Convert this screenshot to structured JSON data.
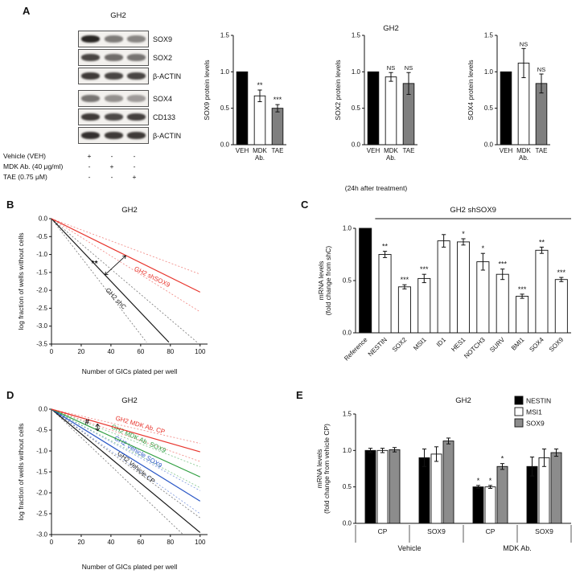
{
  "panels": {
    "a": {
      "letter": "A",
      "blot_title": "GH2",
      "blots": [
        {
          "label": "SOX9",
          "lanes": [
            0.95,
            0.55,
            0.5
          ]
        },
        {
          "label": "SOX2",
          "lanes": [
            0.8,
            0.62,
            0.58
          ]
        },
        {
          "label": "β-ACTIN",
          "lanes": [
            0.85,
            0.8,
            0.8
          ]
        },
        {
          "label": "SOX4",
          "lanes": [
            0.58,
            0.45,
            0.4
          ]
        },
        {
          "label": "CD133",
          "lanes": [
            0.85,
            0.78,
            0.82
          ]
        },
        {
          "label": "β-ACTIN",
          "lanes": [
            0.9,
            0.85,
            0.85
          ]
        }
      ],
      "treatments": [
        {
          "label": "Vehicle (VEH)",
          "symbols": [
            "+",
            "-",
            "-"
          ]
        },
        {
          "label": "MDK Ab. (40 μg/ml)",
          "symbols": [
            "-",
            "+",
            "-"
          ]
        },
        {
          "label": "TAE (0.75 μM)",
          "symbols": [
            "-",
            "-",
            "+"
          ]
        }
      ],
      "footnote": "(24h after treatment)"
    },
    "b": {
      "letter": "B"
    },
    "c": {
      "letter": "C"
    },
    "d": {
      "letter": "D"
    },
    "e": {
      "letter": "E"
    }
  },
  "chart_data": [
    {
      "id": "a1",
      "type": "bar",
      "title": "",
      "ylabel": [
        "SOX9 protein levels"
      ],
      "ylim": [
        0,
        1.5
      ],
      "yticks": [
        0,
        0.5,
        1,
        1.5
      ],
      "categories": [
        [
          "VEH"
        ],
        [
          "MDK",
          "Ab."
        ],
        [
          "TAE"
        ]
      ],
      "values": [
        1.0,
        0.67,
        0.5
      ],
      "errors": [
        0,
        0.08,
        0.05
      ],
      "fills": [
        "#000000",
        "#ffffff",
        "#7f7f7f"
      ],
      "sig": [
        "",
        "**",
        "***"
      ]
    },
    {
      "id": "a2",
      "type": "bar",
      "title": "GH2",
      "ylabel": [
        "SOX2 protein levels"
      ],
      "ylim": [
        0,
        1.5
      ],
      "yticks": [
        0,
        0.5,
        1,
        1.5
      ],
      "categories": [
        [
          "VEH"
        ],
        [
          "MDK",
          "Ab."
        ],
        [
          "TAE"
        ]
      ],
      "values": [
        1.0,
        0.93,
        0.84
      ],
      "errors": [
        0,
        0.06,
        0.15
      ],
      "fills": [
        "#000000",
        "#ffffff",
        "#7f7f7f"
      ],
      "sig": [
        "",
        "NS",
        "NS"
      ]
    },
    {
      "id": "a3",
      "type": "bar",
      "title": "",
      "ylabel": [
        "SOX4 protein levels"
      ],
      "ylim": [
        0,
        1.5
      ],
      "yticks": [
        0,
        0.5,
        1,
        1.5
      ],
      "categories": [
        [
          "VEH"
        ],
        [
          "MDK",
          "Ab."
        ],
        [
          "TAE"
        ]
      ],
      "values": [
        1.0,
        1.12,
        0.84
      ],
      "errors": [
        0,
        0.2,
        0.13
      ],
      "fills": [
        "#000000",
        "#ffffff",
        "#7f7f7f"
      ],
      "sig": [
        "",
        "NS",
        "NS"
      ]
    },
    {
      "id": "b",
      "type": "line",
      "title": "GH2",
      "xlabel": "Number of GICs plated per well",
      "ylabel": [
        "log fraction of wells without cells"
      ],
      "xlim": [
        0,
        105
      ],
      "xticks": [
        0,
        20,
        40,
        60,
        80,
        100
      ],
      "ylim": [
        -3.5,
        0
      ],
      "yticks": [
        0,
        -0.5,
        -1,
        -1.5,
        -2,
        -2.5,
        -3,
        -3.5
      ],
      "lines": [
        {
          "name": "GH2 shC",
          "color": "#1a1a1a",
          "end": [
            79,
            -3.45
          ],
          "ci": [
            [
              64,
              -3.45
            ],
            [
              98,
              -3.45
            ]
          ],
          "label": {
            "t": 0.6,
            "offset": -13
          }
        },
        {
          "name": "GH2 shSOX9",
          "color": "#e8342c",
          "end": [
            100,
            -2.05
          ],
          "ci": [
            [
              100,
              -2.6
            ],
            [
              100,
              -1.55
            ]
          ],
          "label": {
            "t": 0.7,
            "offset": -12
          }
        }
      ],
      "annotation": {
        "text": "**",
        "x": 29,
        "y": -1.32,
        "arrow": [
          36,
          -1.57,
          50,
          -1.03
        ]
      }
    },
    {
      "id": "c",
      "type": "bar",
      "title": "GH2 shSOX9",
      "overline": [
        1,
        10
      ],
      "ylabel": [
        "mRNA levels",
        "(fold change from shC)"
      ],
      "ylim": [
        0,
        1.0
      ],
      "yticks": [
        0,
        0.5,
        1
      ],
      "rotate_ticks": true,
      "categories": [
        "Reference",
        "NESTIN",
        "SOX2",
        "MSI1",
        "ID1",
        "HES1",
        "NOTCH3",
        "SURV",
        "BMI1",
        "SOX4",
        "SOX9"
      ],
      "values": [
        1.0,
        0.75,
        0.44,
        0.52,
        0.88,
        0.87,
        0.68,
        0.56,
        0.35,
        0.79,
        0.51
      ],
      "errors": [
        0,
        0.03,
        0.02,
        0.04,
        0.06,
        0.03,
        0.08,
        0.05,
        0.02,
        0.03,
        0.02
      ],
      "fills": [
        "#000000",
        "#ffffff",
        "#ffffff",
        "#ffffff",
        "#ffffff",
        "#ffffff",
        "#ffffff",
        "#ffffff",
        "#ffffff",
        "#ffffff",
        "#ffffff"
      ],
      "sig": [
        "",
        "**",
        "***",
        "***",
        "",
        "*",
        "*",
        "***",
        "***",
        "**",
        "***"
      ]
    },
    {
      "id": "d",
      "type": "line",
      "title": "GH2",
      "xlabel": "Number of GICs plated per well",
      "ylabel": [
        "log fraction of wells without cells"
      ],
      "xlim": [
        0,
        105
      ],
      "xticks": [
        0,
        20,
        40,
        60,
        80,
        100
      ],
      "ylim": [
        -3.0,
        0
      ],
      "yticks": [
        0,
        -0.5,
        -1,
        -1.5,
        -2,
        -2.5,
        -3
      ],
      "lines": [
        {
          "name": "GH2 Vehicle CP",
          "color": "#1a1a1a",
          "end": [
            100,
            -2.95
          ],
          "ci": [
            [
              88,
              -2.98
            ],
            [
              100,
              -2.6
            ]
          ],
          "label": {
            "t": 0.53,
            "offset": 9
          }
        },
        {
          "name": "GH2 Vehicle SOX9",
          "color": "#2a57c6",
          "end": [
            100,
            -2.2
          ],
          "ci": [
            [
              100,
              -2.5
            ],
            [
              100,
              -1.95
            ]
          ],
          "label": {
            "t": 0.55,
            "offset": 9
          }
        },
        {
          "name": "GH2 MDK Ab. SOX9",
          "color": "#2e9e3f",
          "end": [
            100,
            -1.62
          ],
          "ci": [
            [
              100,
              -1.88
            ],
            [
              100,
              -1.38
            ]
          ],
          "label": {
            "t": 0.56,
            "offset": 9
          }
        },
        {
          "name": "GH2 MDK Ab. CP",
          "color": "#e8342c",
          "end": [
            100,
            -1.02
          ],
          "ci": [
            [
              100,
              -1.25
            ],
            [
              100,
              -0.82
            ]
          ],
          "label": {
            "t": 0.58,
            "offset": 9
          }
        }
      ],
      "annotation": {
        "text": "#",
        "x": 24,
        "y": -0.37,
        "arrow": [
          31,
          -0.35,
          31,
          -0.52
        ]
      }
    },
    {
      "id": "e",
      "type": "groupbar",
      "title": "GH2",
      "ylabel": [
        "mRNA levels",
        "(fold change from vehicle CP)"
      ],
      "ylim": [
        0,
        1.5
      ],
      "yticks": [
        0,
        0.5,
        1,
        1.5
      ],
      "groups": [
        "CP",
        "SOX9",
        "CP",
        "SOX9"
      ],
      "conditions": [
        {
          "label": "Vehicle",
          "span": [
            0,
            2
          ]
        },
        {
          "label": "MDK Ab.",
          "span": [
            2,
            4
          ]
        }
      ],
      "series": [
        {
          "name": "NESTIN",
          "fill": "#000000",
          "values": [
            1.0,
            0.9,
            0.5,
            0.78
          ],
          "errors": [
            0.03,
            0.12,
            0.02,
            0.13
          ],
          "sig": [
            "",
            "",
            "*",
            ""
          ]
        },
        {
          "name": "MSI1",
          "fill": "#ffffff",
          "values": [
            1.0,
            0.95,
            0.5,
            0.9
          ],
          "errors": [
            0.03,
            0.1,
            0.02,
            0.12
          ],
          "sig": [
            "",
            "",
            "*",
            ""
          ]
        },
        {
          "name": "SOX9",
          "fill": "#8c8c8c",
          "values": [
            1.01,
            1.13,
            0.78,
            0.97
          ],
          "errors": [
            0.03,
            0.04,
            0.04,
            0.05
          ],
          "sig": [
            "",
            "",
            "*",
            ""
          ]
        }
      ]
    }
  ]
}
